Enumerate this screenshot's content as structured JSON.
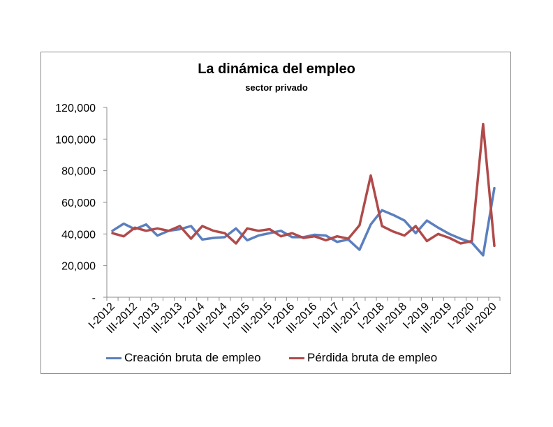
{
  "chart_data": {
    "type": "line",
    "title": "La dinámica del empleo",
    "subtitle": "sector privado",
    "ylim": [
      0,
      120000
    ],
    "y_ticks": [
      0,
      20000,
      40000,
      60000,
      80000,
      100000,
      120000
    ],
    "y_tick_labels": [
      "-",
      "20,000",
      "40,000",
      "60,000",
      "80,000",
      "100,000",
      "120,000"
    ],
    "x_tick_labels": [
      "I-2012",
      "III-2012",
      "I-2013",
      "III-2013",
      "I-2014",
      "III-2014",
      "I-2015",
      "III-2015",
      "I-2016",
      "III-2016",
      "I-2017",
      "III-2017",
      "I-2018",
      "III-2018",
      "I-2019",
      "III-2019",
      "I-2020",
      "III-2020"
    ],
    "grid": false,
    "legend_position": "bottom",
    "categories": [
      "I-2012",
      "II-2012",
      "III-2012",
      "IV-2012",
      "I-2013",
      "II-2013",
      "III-2013",
      "IV-2013",
      "I-2014",
      "II-2014",
      "III-2014",
      "IV-2014",
      "I-2015",
      "II-2015",
      "III-2015",
      "IV-2015",
      "I-2016",
      "II-2016",
      "III-2016",
      "IV-2016",
      "I-2017",
      "II-2017",
      "III-2017",
      "IV-2017",
      "I-2018",
      "II-2018",
      "III-2018",
      "IV-2018",
      "I-2019",
      "II-2019",
      "III-2019",
      "IV-2019",
      "I-2020",
      "II-2020",
      "III-2020"
    ],
    "series": [
      {
        "name": "Creación bruta de empleo",
        "color": "#5b7fbe",
        "values": [
          42000,
          46500,
          43000,
          46000,
          39000,
          42000,
          43000,
          45000,
          36500,
          37500,
          38000,
          43500,
          36000,
          39000,
          40500,
          42000,
          38000,
          38000,
          39500,
          39000,
          35000,
          36500,
          30000,
          46000,
          55000,
          52000,
          48500,
          40500,
          48500,
          44000,
          40000,
          37000,
          34500,
          26500,
          69000
        ]
      },
      {
        "name": "Pérdida bruta de empleo",
        "color": "#b04a4a",
        "values": [
          40500,
          38500,
          44000,
          42000,
          43500,
          42000,
          45000,
          37000,
          45000,
          42000,
          40500,
          34000,
          43500,
          42000,
          43000,
          38500,
          40500,
          37500,
          38500,
          36000,
          38500,
          37000,
          45500,
          77000,
          45000,
          41500,
          39000,
          45000,
          35500,
          40000,
          37500,
          34000,
          35500,
          109500,
          32500
        ]
      }
    ]
  }
}
